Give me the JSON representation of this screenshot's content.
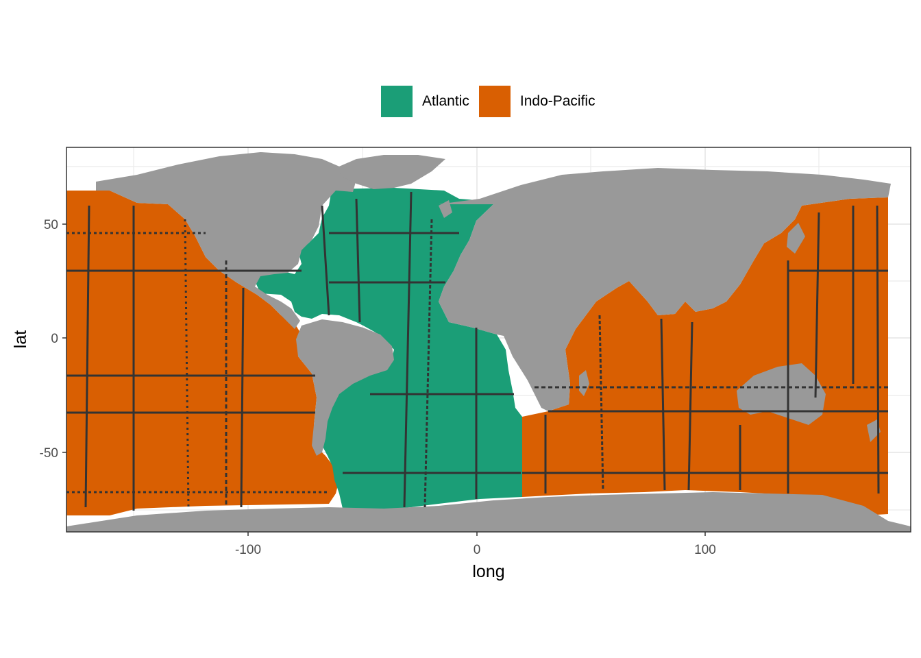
{
  "legend": {
    "items": [
      {
        "label": "Atlantic",
        "color": "#1b9e77"
      },
      {
        "label": "Indo-Pacific",
        "color": "#d95f02"
      }
    ]
  },
  "axes": {
    "xlabel": "long",
    "ylabel": "lat",
    "xticks": [
      "-100",
      "0",
      "100"
    ],
    "yticks": [
      "50",
      "0",
      "-50"
    ]
  },
  "colors": {
    "land": "#999999",
    "track": "#333333",
    "grid": "#ebebeb",
    "panel_border": "#333333"
  },
  "chart_data": {
    "type": "map",
    "xlabel": "long",
    "ylabel": "lat",
    "xlim": [
      -180,
      190
    ],
    "ylim": [
      -85,
      83
    ],
    "x_ticks": [
      -100,
      0,
      100
    ],
    "y_ticks": [
      50,
      0,
      -50
    ],
    "grid": true,
    "legend_position": "top",
    "fill_categories": [
      "Atlantic",
      "Indo-Pacific"
    ],
    "land_color": "#999999",
    "series": [
      {
        "name": "Atlantic",
        "color": "#1b9e77"
      },
      {
        "name": "Indo-Pacific",
        "color": "#d95f02"
      }
    ]
  }
}
